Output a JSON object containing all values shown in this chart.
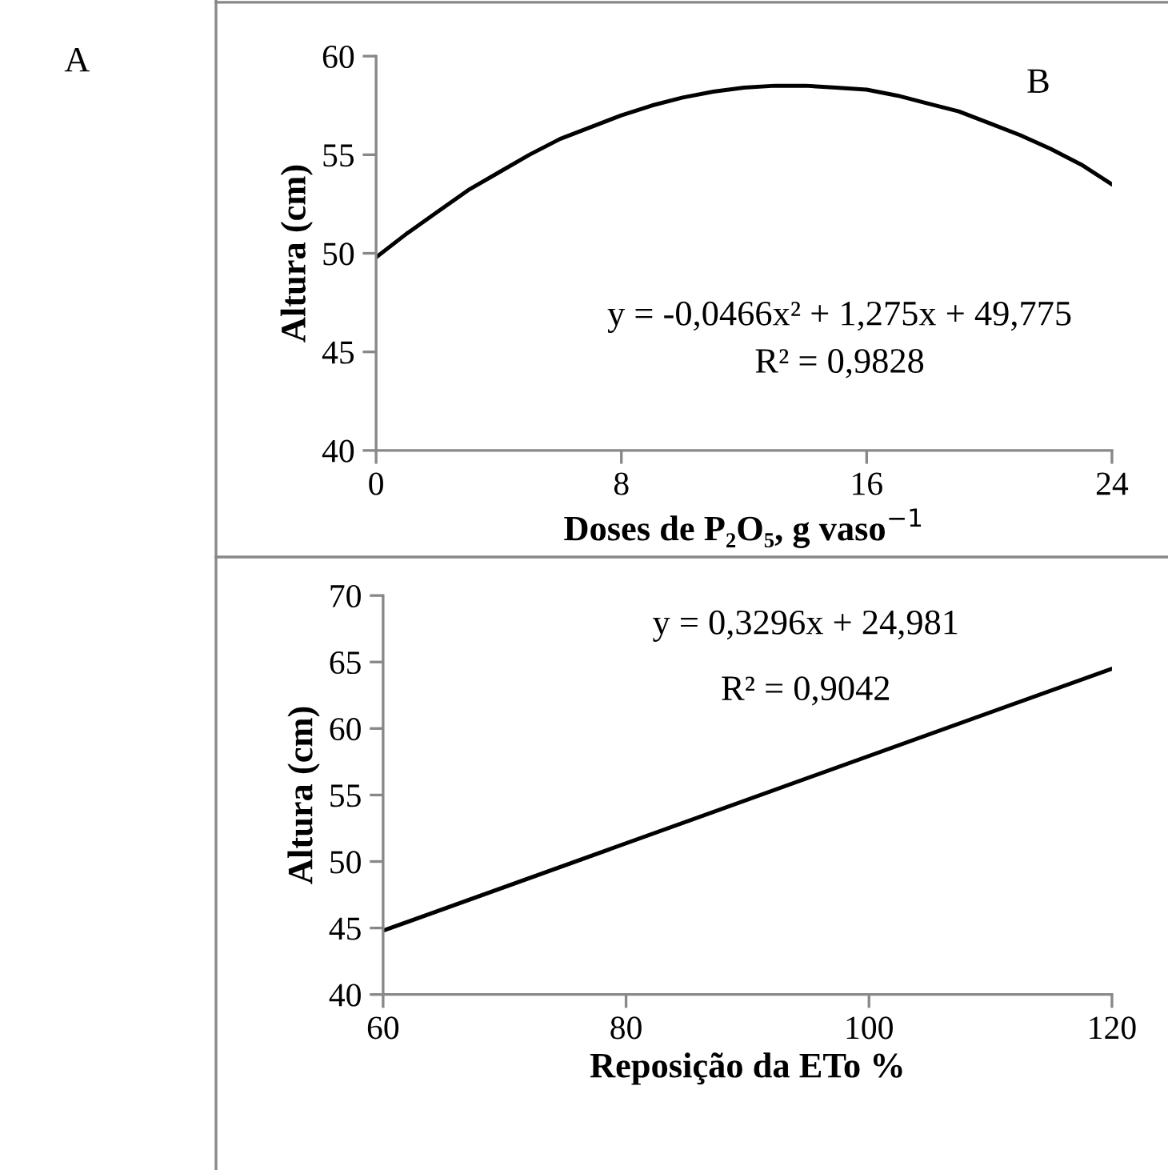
{
  "chart_data": [
    {
      "type": "line",
      "xlabel": "Doses de P₂O₅, g vaso$^{−1}$",
      "ylabel": "Altura (cm)",
      "x": [
        0,
        1,
        2,
        3,
        4,
        5,
        6,
        7,
        8,
        9,
        10,
        11,
        12,
        13,
        14,
        15,
        16,
        17,
        18,
        19,
        20,
        21,
        22,
        23,
        24
      ],
      "series": [
        {
          "color": "#000000",
          "values": [
            49.8,
            51.0,
            52.1,
            53.2,
            54.1,
            55.0,
            55.8,
            56.4,
            57.0,
            57.5,
            57.9,
            58.2,
            58.4,
            58.5,
            58.5,
            58.4,
            58.3,
            58.0,
            57.6,
            57.2,
            56.6,
            56.0,
            55.3,
            54.5,
            53.5
          ]
        }
      ],
      "xlim": [
        0,
        24
      ],
      "xticks": [
        0,
        8,
        16,
        24
      ],
      "ylim": [
        40,
        60
      ],
      "yticks": [
        40,
        45,
        50,
        55,
        60
      ],
      "annotations": [
        "A",
        "B",
        "y = -0,0466x² + 1,275x + 49,775",
        "R² = 0,9828"
      ]
    },
    {
      "type": "line",
      "xlabel": "Reposição da ETo %",
      "ylabel": "Altura (cm)",
      "x": [
        60,
        120
      ],
      "series": [
        {
          "color": "#000000",
          "values": [
            44.8,
            64.5
          ]
        }
      ],
      "xlim": [
        60,
        120
      ],
      "xticks": [
        60,
        80,
        100,
        120
      ],
      "ylim": [
        40,
        70
      ],
      "yticks": [
        40,
        45,
        50,
        55,
        60,
        65,
        70
      ],
      "annotations": [
        "y = 0,3296x + 24,981",
        "R² = 0,9042"
      ]
    }
  ]
}
